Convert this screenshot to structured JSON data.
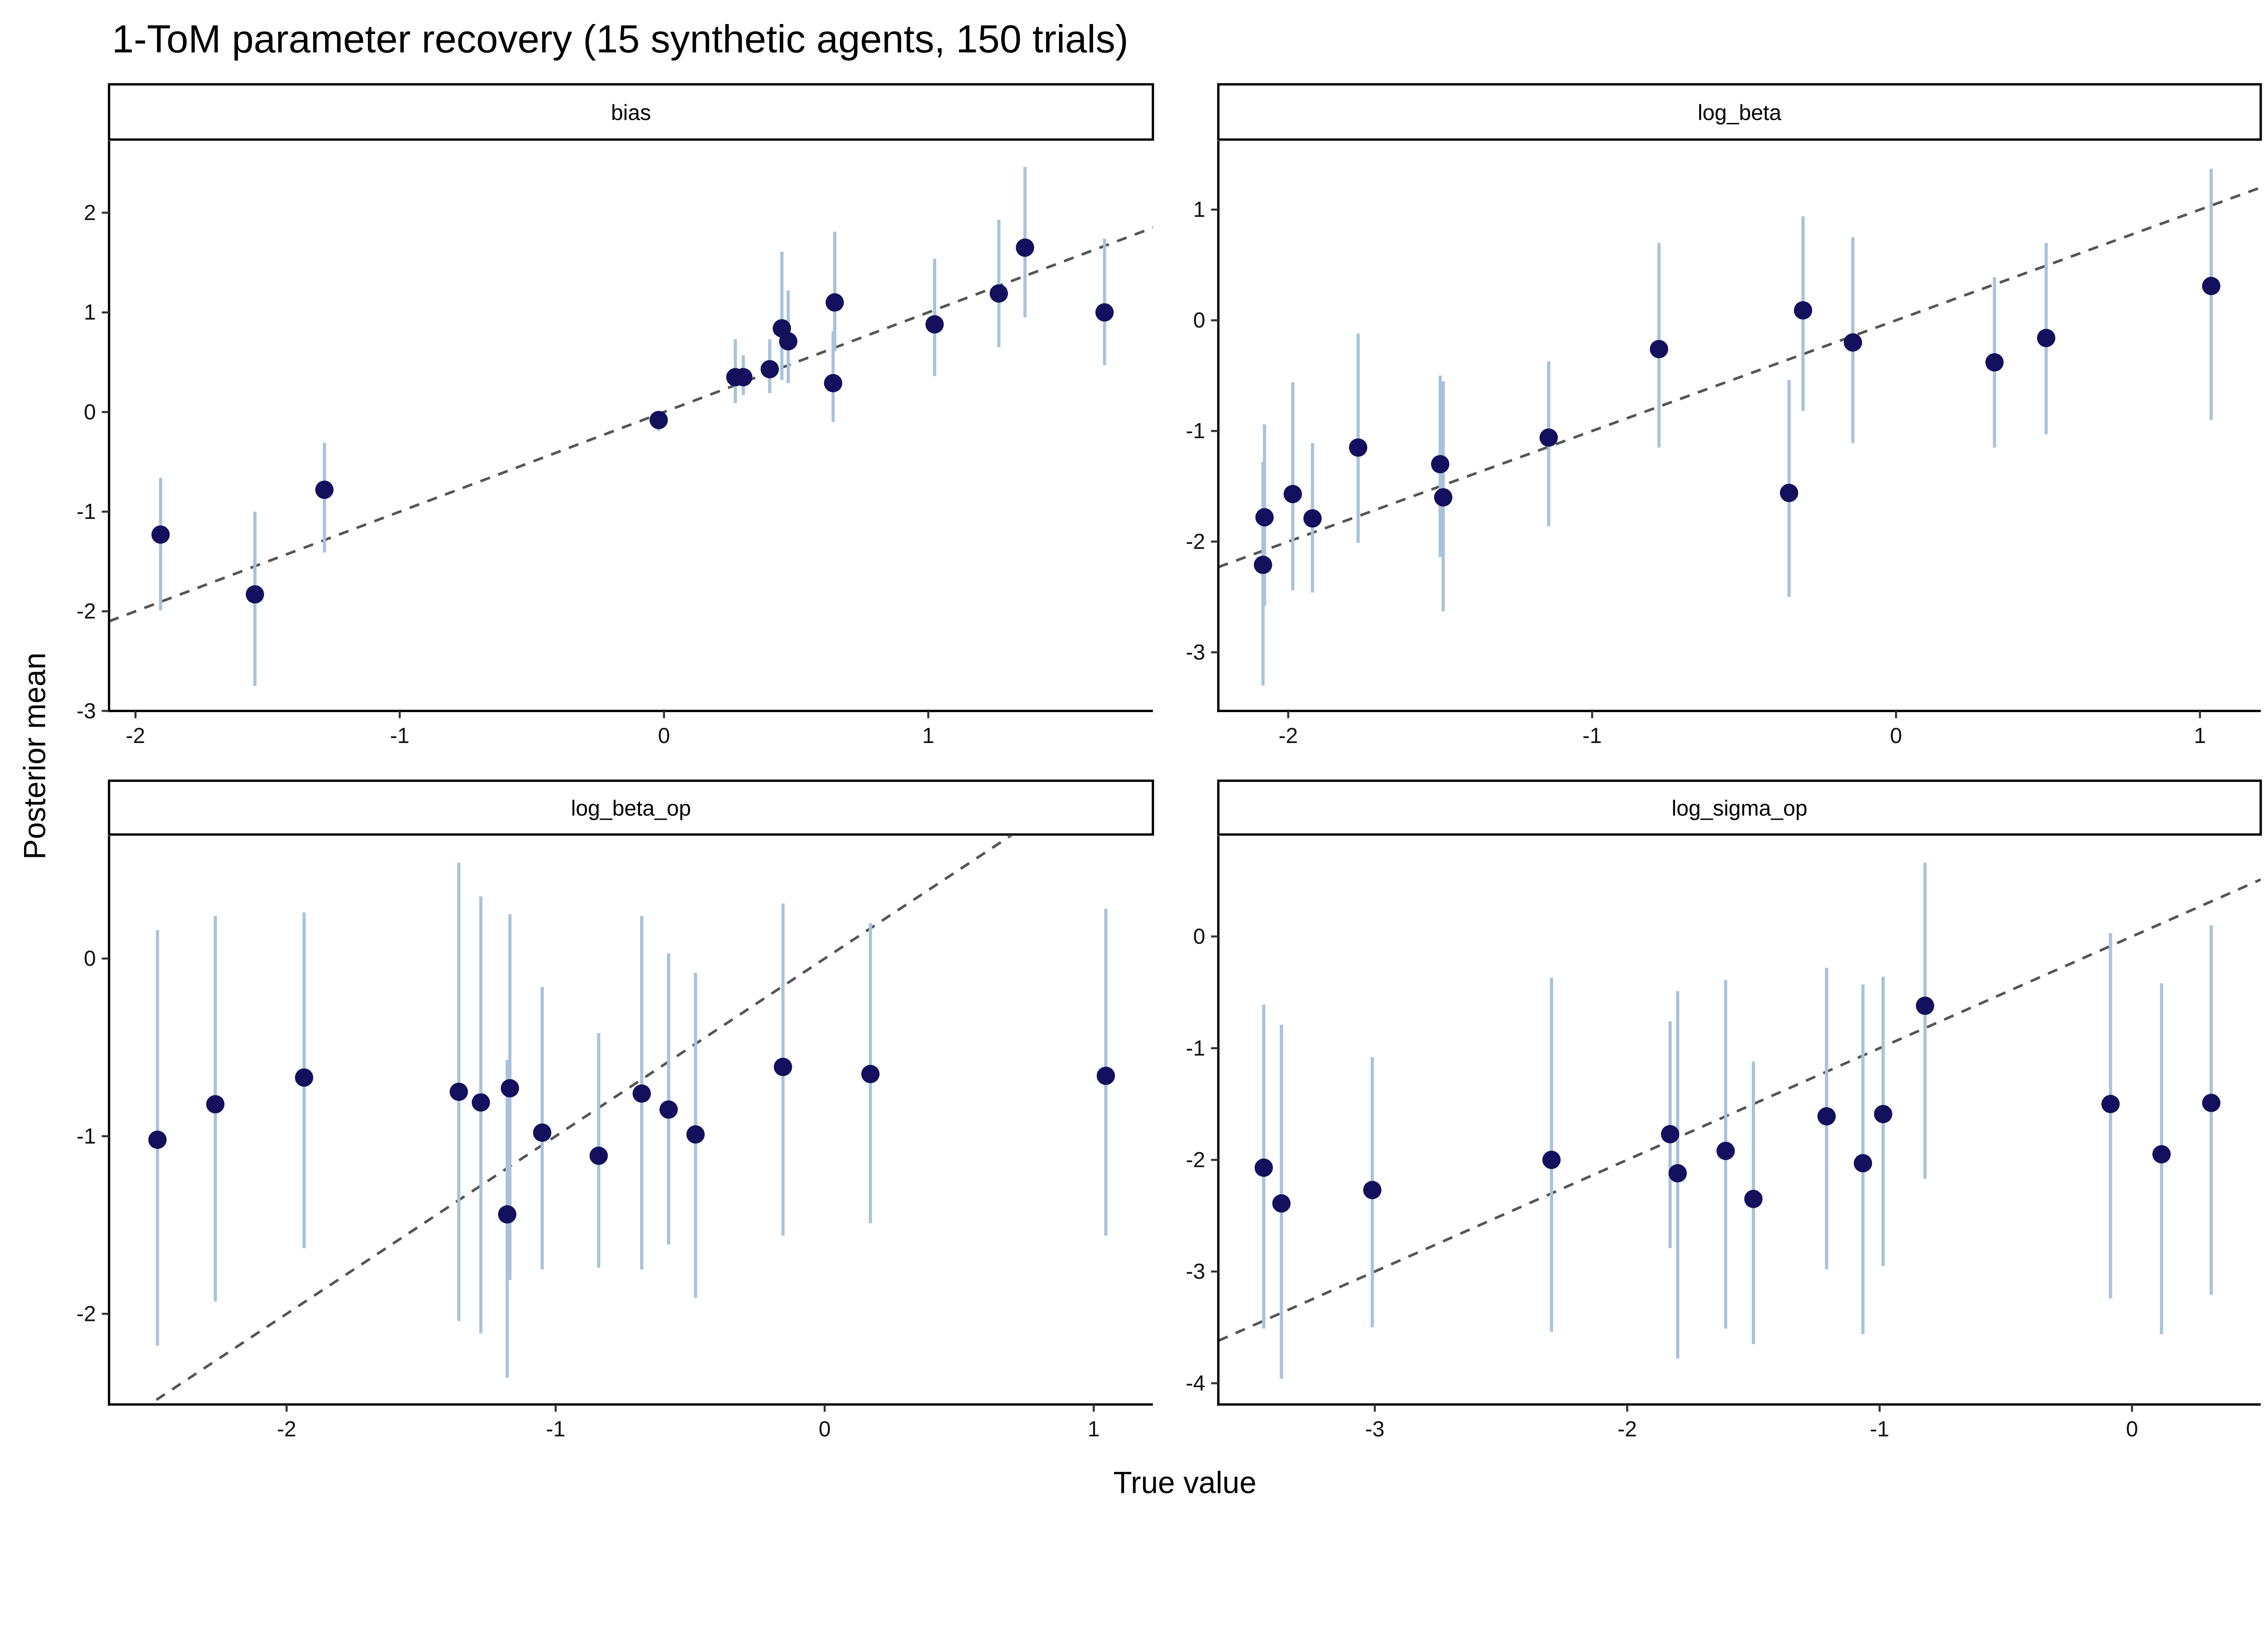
{
  "figure": {
    "title": "1-ToM parameter recovery (15 synthetic agents, 150 trials)",
    "xlabel": "True value",
    "ylabel": "Posterior mean",
    "colors": {
      "point": "#14105e",
      "errorbar": "#a9c2dc",
      "reference_line": "#555555",
      "axis": "#000000"
    }
  },
  "chart_data": [
    {
      "type": "scatter",
      "facet": "bias",
      "xlim": [
        -2.1,
        1.85
      ],
      "ylim": [
        -3.0,
        2.72
      ],
      "xticks": [
        -2,
        -1,
        0,
        1
      ],
      "yticks": [
        -3,
        -2,
        -1,
        0,
        1,
        2
      ],
      "reference_line": "identity (y = x), dashed",
      "points": [
        {
          "x": -1.905,
          "y": -1.23,
          "lo": -1.99,
          "hi": -0.66
        },
        {
          "x": -1.548,
          "y": -1.83,
          "lo": -2.75,
          "hi": -1.0
        },
        {
          "x": -1.285,
          "y": -0.78,
          "lo": -1.41,
          "hi": -0.31
        },
        {
          "x": -0.02,
          "y": -0.08,
          "lo": -0.19,
          "hi": -0.01
        },
        {
          "x": 0.27,
          "y": 0.35,
          "lo": 0.09,
          "hi": 0.73
        },
        {
          "x": 0.3,
          "y": 0.35,
          "lo": 0.17,
          "hi": 0.57
        },
        {
          "x": 0.4,
          "y": 0.43,
          "lo": 0.19,
          "hi": 0.73
        },
        {
          "x": 0.446,
          "y": 0.84,
          "lo": 0.32,
          "hi": 1.61
        },
        {
          "x": 0.47,
          "y": 0.71,
          "lo": 0.29,
          "hi": 1.22
        },
        {
          "x": 0.646,
          "y": 1.1,
          "lo": 0.61,
          "hi": 1.81
        },
        {
          "x": 0.64,
          "y": 0.29,
          "lo": -0.1,
          "hi": 0.81
        },
        {
          "x": 1.024,
          "y": 0.88,
          "lo": 0.36,
          "hi": 1.54
        },
        {
          "x": 1.267,
          "y": 1.19,
          "lo": 0.65,
          "hi": 1.93
        },
        {
          "x": 1.366,
          "y": 1.65,
          "lo": 0.95,
          "hi": 2.46
        },
        {
          "x": 1.667,
          "y": 1.0,
          "lo": 0.47,
          "hi": 1.74
        }
      ]
    },
    {
      "type": "scatter",
      "facet": "log_beta",
      "xlim": [
        -2.23,
        1.2
      ],
      "ylim": [
        -3.53,
        1.62
      ],
      "xticks": [
        -2,
        -1,
        0,
        1
      ],
      "yticks": [
        -3,
        -2,
        -1,
        0,
        1
      ],
      "reference_line": "identity (y = x), dashed",
      "points": [
        {
          "x": -2.083,
          "y": -2.21,
          "lo": -3.3,
          "hi": -1.28
        },
        {
          "x": -2.078,
          "y": -1.78,
          "lo": -2.58,
          "hi": -0.94
        },
        {
          "x": -1.985,
          "y": -1.57,
          "lo": -2.44,
          "hi": -0.56
        },
        {
          "x": -1.92,
          "y": -1.79,
          "lo": -2.46,
          "hi": -1.11
        },
        {
          "x": -1.77,
          "y": -1.15,
          "lo": -2.01,
          "hi": -0.12
        },
        {
          "x": -1.5,
          "y": -1.3,
          "lo": -2.14,
          "hi": -0.5
        },
        {
          "x": -1.49,
          "y": -1.6,
          "lo": -2.63,
          "hi": -0.55
        },
        {
          "x": -1.143,
          "y": -1.06,
          "lo": -1.86,
          "hi": -0.37
        },
        {
          "x": -0.78,
          "y": -0.26,
          "lo": -1.15,
          "hi": 0.7
        },
        {
          "x": -0.352,
          "y": -1.56,
          "lo": -2.5,
          "hi": -0.54
        },
        {
          "x": -0.306,
          "y": 0.09,
          "lo": -0.82,
          "hi": 0.94
        },
        {
          "x": -0.142,
          "y": -0.2,
          "lo": -1.11,
          "hi": 0.75
        },
        {
          "x": 0.324,
          "y": -0.38,
          "lo": -1.15,
          "hi": 0.39
        },
        {
          "x": 0.494,
          "y": -0.16,
          "lo": -1.03,
          "hi": 0.7
        },
        {
          "x": 1.037,
          "y": 0.31,
          "lo": -0.9,
          "hi": 1.37
        }
      ]
    },
    {
      "type": "scatter",
      "facet": "log_beta_op",
      "xlim": [
        -2.66,
        1.22
      ],
      "ylim": [
        -2.51,
        0.69
      ],
      "xticks": [
        -2,
        -1,
        0,
        1
      ],
      "yticks": [
        -2,
        -1,
        0
      ],
      "reference_line": "identity (y = x), dashed",
      "points": [
        {
          "x": -2.48,
          "y": -1.02,
          "lo": -2.18,
          "hi": 0.16
        },
        {
          "x": -2.265,
          "y": -0.82,
          "lo": -1.93,
          "hi": 0.24
        },
        {
          "x": -1.935,
          "y": -0.67,
          "lo": -1.63,
          "hi": 0.26
        },
        {
          "x": -1.36,
          "y": -0.75,
          "lo": -2.04,
          "hi": 0.54
        },
        {
          "x": -1.278,
          "y": -0.81,
          "lo": -2.11,
          "hi": 0.35
        },
        {
          "x": -1.17,
          "y": -0.73,
          "lo": -1.81,
          "hi": 0.25
        },
        {
          "x": -1.18,
          "y": -1.44,
          "lo": -2.36,
          "hi": -0.57
        },
        {
          "x": -1.05,
          "y": -0.98,
          "lo": -1.75,
          "hi": -0.16
        },
        {
          "x": -0.84,
          "y": -1.11,
          "lo": -1.74,
          "hi": -0.42
        },
        {
          "x": -0.68,
          "y": -0.76,
          "lo": -1.75,
          "hi": 0.24
        },
        {
          "x": -0.58,
          "y": -0.85,
          "lo": -1.61,
          "hi": 0.03
        },
        {
          "x": -0.48,
          "y": -0.99,
          "lo": -1.91,
          "hi": -0.08
        },
        {
          "x": -0.155,
          "y": -0.61,
          "lo": -1.56,
          "hi": 0.31
        },
        {
          "x": 0.17,
          "y": -0.65,
          "lo": -1.49,
          "hi": 0.2
        },
        {
          "x": 1.045,
          "y": -0.66,
          "lo": -1.56,
          "hi": 0.28
        }
      ]
    },
    {
      "type": "scatter",
      "facet": "log_sigma_op",
      "xlim": [
        -3.62,
        0.51
      ],
      "ylim": [
        -4.19,
        0.9
      ],
      "xticks": [
        -3,
        -2,
        -1,
        0
      ],
      "yticks": [
        -4,
        -3,
        -2,
        -1,
        0
      ],
      "reference_line": "identity (y = x), dashed",
      "points": [
        {
          "x": -3.44,
          "y": -2.07,
          "lo": -3.51,
          "hi": -0.61
        },
        {
          "x": -3.37,
          "y": -2.39,
          "lo": -3.96,
          "hi": -0.79
        },
        {
          "x": -3.01,
          "y": -2.27,
          "lo": -3.5,
          "hi": -1.08
        },
        {
          "x": -2.3,
          "y": -2.0,
          "lo": -3.54,
          "hi": -0.37
        },
        {
          "x": -1.83,
          "y": -1.77,
          "lo": -2.79,
          "hi": -0.76
        },
        {
          "x": -1.8,
          "y": -2.12,
          "lo": -3.78,
          "hi": -0.49
        },
        {
          "x": -1.61,
          "y": -1.92,
          "lo": -3.51,
          "hi": -0.39
        },
        {
          "x": -1.5,
          "y": -2.35,
          "lo": -3.65,
          "hi": -1.12
        },
        {
          "x": -1.21,
          "y": -1.61,
          "lo": -2.98,
          "hi": -0.28
        },
        {
          "x": -1.066,
          "y": -2.03,
          "lo": -3.56,
          "hi": -0.43
        },
        {
          "x": -0.986,
          "y": -1.59,
          "lo": -2.95,
          "hi": -0.36
        },
        {
          "x": -0.82,
          "y": -0.62,
          "lo": -2.17,
          "hi": 0.66
        },
        {
          "x": -0.085,
          "y": -1.5,
          "lo": -3.24,
          "hi": 0.03
        },
        {
          "x": 0.117,
          "y": -1.95,
          "lo": -3.56,
          "hi": -0.42
        },
        {
          "x": 0.314,
          "y": -1.49,
          "lo": -3.21,
          "hi": 0.1
        }
      ]
    }
  ]
}
